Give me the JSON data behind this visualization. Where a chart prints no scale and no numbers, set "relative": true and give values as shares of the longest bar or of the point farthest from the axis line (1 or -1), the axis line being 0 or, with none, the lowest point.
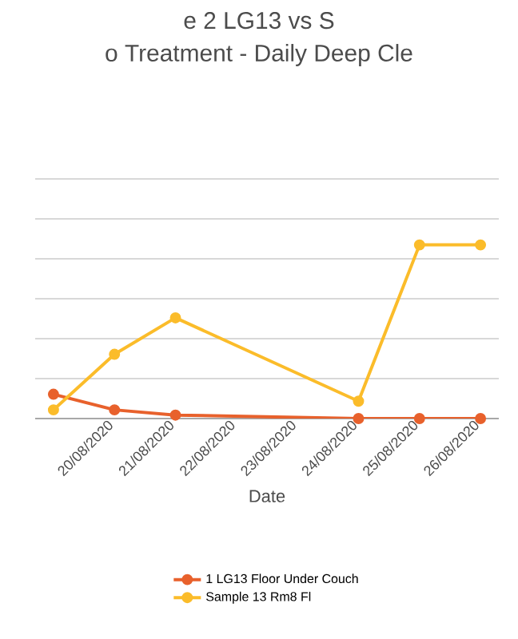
{
  "chart_data": {
    "type": "line",
    "title": "e 2 LG13 vs S",
    "subtitle": "o Treatment - Daily Deep Cle",
    "xlabel": "Date",
    "categories": [
      null,
      "20/08/2020",
      "21/08/2020",
      "22/08/2020",
      "23/08/2020",
      "24/08/2020",
      "25/08/2020",
      "26/08/2020"
    ],
    "relative": true,
    "grid": "y",
    "legend": "bottom",
    "marker": "circle",
    "line_style": "solid",
    "series": [
      {
        "name": "1 LG13 Floor Under Couch",
        "color": "#e8612c",
        "values": [
          0.14,
          0.05,
          0.02,
          null,
          null,
          0,
          0,
          0
        ]
      },
      {
        "name": "Sample 13 Rm8  Fl",
        "color": "#fbbc2a",
        "values": [
          0.05,
          0.37,
          0.58,
          null,
          null,
          0.1,
          1,
          1
        ]
      }
    ]
  }
}
